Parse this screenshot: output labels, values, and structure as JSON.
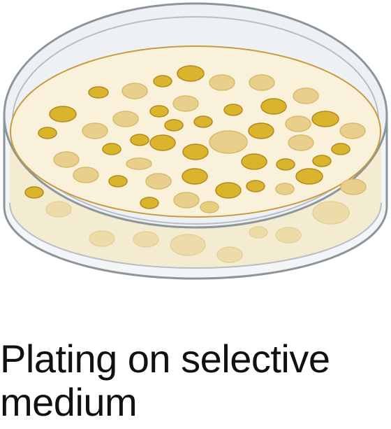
{
  "caption": "Plating on selective medium",
  "illustration": {
    "name": "petri-dish-with-colonies",
    "colors": {
      "dish_outline": "#8d959c",
      "medium_fill": "#faf1da",
      "medium_edge": "#c79a40",
      "colony_bright": "#d9b42c",
      "colony_bright_rim": "#b38a1c",
      "colony_pale": "#e8d08c",
      "colony_pale_rim": "#d6bb6a"
    }
  }
}
